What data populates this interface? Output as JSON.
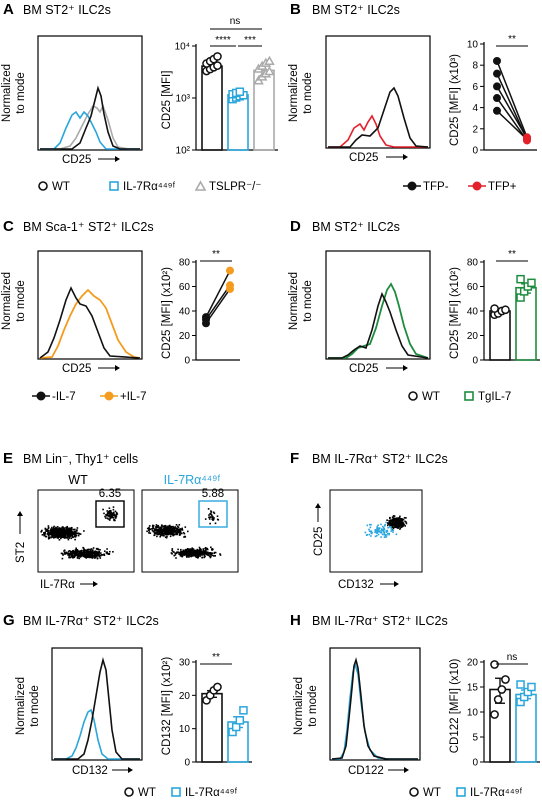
{
  "panels": {
    "A": {
      "letter": "A",
      "title": "BM ST2⁺ ILC2s",
      "hist_ylabel": [
        "Normalized",
        "to mode"
      ],
      "hist_xlabel": "CD25",
      "bar_ylabel": "CD25 [MFI]",
      "sig": [
        "ns",
        "****",
        "***"
      ],
      "legend": [
        "WT",
        "IL-7Rα⁴⁴⁹ᶠ",
        "TSLPR⁻/⁻"
      ]
    },
    "B": {
      "letter": "B",
      "title": "BM ST2⁺ ILC2s",
      "hist_ylabel": [
        "Normalized",
        "to mode"
      ],
      "hist_xlabel": "CD25",
      "bar_ylabel": "CD25 [MFI] (x10³)",
      "sig": [
        "**"
      ],
      "legend": [
        "TFP-",
        "TFP+"
      ]
    },
    "C": {
      "letter": "C",
      "title": "BM Sca-1⁺ ST2⁺ ILC2s",
      "hist_ylabel": [
        "Normalized",
        "to mode"
      ],
      "hist_xlabel": "CD25",
      "bar_ylabel": "CD25 [MFI] (x10²)",
      "sig": [
        "**"
      ],
      "legend": [
        "-IL-7",
        "+IL-7"
      ]
    },
    "D": {
      "letter": "D",
      "title": "BM ST2⁺ ILC2s",
      "hist_ylabel": [
        "Normalized",
        "to mode"
      ],
      "hist_xlabel": "CD25",
      "bar_ylabel": "CD25 [MFI] (x10²)",
      "sig": [
        "**"
      ],
      "legend": [
        "WT",
        "TgIL-7"
      ]
    },
    "E": {
      "letter": "E",
      "title": "BM Lin⁻, Thy1⁺ cells",
      "sub": [
        "WT",
        "IL-7Rα⁴⁴⁹ᶠ"
      ],
      "gate": [
        "6.35",
        "5.88"
      ],
      "ylabel": "ST2",
      "xlabel": "IL-7Rα"
    },
    "F": {
      "letter": "F",
      "title": "BM IL-7Rα⁺ ST2⁺ ILC2s",
      "ylabel": "CD25",
      "xlabel": "CD132"
    },
    "G": {
      "letter": "G",
      "title": "BM IL-7Rα⁺ ST2⁺ ILC2s",
      "hist_ylabel": [
        "Normalized",
        "to mode"
      ],
      "hist_xlabel": "CD132",
      "bar_ylabel": "CD132 [MFI] (x10²)",
      "sig": [
        "**"
      ],
      "legend": [
        "WT",
        "IL-7Rα⁴⁴⁹ᶠ"
      ]
    },
    "H": {
      "letter": "H",
      "title": "BM IL-7Rα⁺ ST2⁺ ILC2s",
      "hist_ylabel": [
        "Normalized",
        "to mode"
      ],
      "hist_xlabel": "CD122",
      "bar_ylabel": "CD122 [MFI] (x10)",
      "sig": [
        "ns"
      ],
      "legend": [
        "WT",
        "IL-7Rα⁴⁴⁹ᶠ"
      ]
    }
  },
  "colors": {
    "black": "#111111",
    "blue": "#2aa6dc",
    "gray": "#aaaaaa",
    "red": "#e4202a",
    "orange": "#f39c1f",
    "green": "#1e8c3e"
  },
  "chart_data": [
    {
      "panel": "A",
      "type": "bar",
      "scale": "log",
      "ylim": [
        100,
        10000
      ],
      "yticks": [
        100,
        1000,
        10000
      ],
      "ytick_labels": [
        "10²",
        "10³",
        "10⁴"
      ],
      "categories": [
        "WT",
        "IL-7Rα⁴⁴⁹ᶠ",
        "TSLPR⁻/⁻"
      ],
      "series": [
        {
          "name": "WT",
          "mean": 4100,
          "points": [
            3300,
            3600,
            3900,
            4200,
            4600,
            5100,
            5600,
            6300
          ]
        },
        {
          "name": "IL-7Rα⁴⁴⁹ᶠ",
          "mean": 1150,
          "points": [
            950,
            1020,
            1080,
            1130,
            1180,
            1250,
            1320
          ]
        },
        {
          "name": "TSLPR⁻/⁻",
          "mean": 3400,
          "points": [
            2200,
            2600,
            3000,
            3300,
            3700,
            4200,
            4800,
            5200
          ]
        }
      ]
    },
    {
      "panel": "B",
      "type": "line",
      "ylim": [
        0,
        10
      ],
      "yticks": [
        0,
        2,
        4,
        6,
        8,
        10
      ],
      "categories": [
        "TFP-",
        "TFP+"
      ],
      "pairs": [
        [
          8.4,
          1.2
        ],
        [
          7.2,
          1.0
        ],
        [
          6.0,
          1.1
        ],
        [
          4.9,
          0.9
        ],
        [
          3.7,
          1.0
        ]
      ]
    },
    {
      "panel": "C",
      "type": "line",
      "ylim": [
        0,
        80
      ],
      "yticks": [
        0,
        20,
        40,
        60,
        80
      ],
      "categories": [
        "-IL-7",
        "+IL-7"
      ],
      "pairs": [
        [
          30,
          58
        ],
        [
          33,
          61
        ],
        [
          35,
          73
        ]
      ]
    },
    {
      "panel": "D",
      "type": "bar",
      "ylim": [
        0,
        80
      ],
      "yticks": [
        0,
        20,
        40,
        60,
        80
      ],
      "categories": [
        "WT",
        "TgIL-7"
      ],
      "series": [
        {
          "name": "WT",
          "mean": 40,
          "points": [
            37,
            38,
            40,
            41,
            42
          ]
        },
        {
          "name": "TgIL-7",
          "mean": 59,
          "points": [
            51,
            56,
            60,
            63,
            66
          ]
        }
      ]
    },
    {
      "panel": "G",
      "type": "bar",
      "ylim": [
        0,
        30
      ],
      "yticks": [
        0,
        10,
        20,
        30
      ],
      "categories": [
        "WT",
        "IL-7Rα⁴⁴⁹ᶠ"
      ],
      "series": [
        {
          "name": "WT",
          "mean": 20.5,
          "points": [
            18.5,
            20,
            21.5,
            22.5
          ]
        },
        {
          "name": "IL-7Rα⁴⁴⁹ᶠ",
          "mean": 12,
          "points": [
            9,
            10.5,
            12.5,
            15.5
          ]
        }
      ]
    },
    {
      "panel": "H",
      "type": "bar",
      "ylim": [
        0,
        20
      ],
      "yticks": [
        0,
        5,
        10,
        15,
        20
      ],
      "categories": [
        "WT",
        "IL-7Rα⁴⁴⁹ᶠ"
      ],
      "series": [
        {
          "name": "WT",
          "mean": 14.5,
          "points": [
            9.5,
            12.5,
            14.5,
            16.5,
            19.5
          ]
        },
        {
          "name": "IL-7Rα⁴⁴⁹ᶠ",
          "mean": 13.5,
          "points": [
            12,
            13,
            14,
            15,
            15.5
          ]
        }
      ]
    }
  ]
}
